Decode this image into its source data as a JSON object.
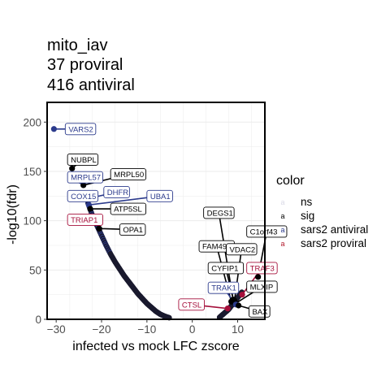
{
  "chart_data": {
    "type": "scatter",
    "title_lines": [
      "mito_iav",
      "37 proviral",
      "416 antiviral"
    ],
    "xlabel": "infected vs mock LFC zscore",
    "ylabel": "-log10(fdr)",
    "xlim": [
      -32,
      16
    ],
    "ylim": [
      0,
      220
    ],
    "x_ticks": [
      -30,
      -20,
      -10,
      0,
      10
    ],
    "y_ticks": [
      0,
      50,
      100,
      150,
      200
    ],
    "x_tick_labels": [
      "−30",
      "−20",
      "−10",
      "0",
      "10"
    ],
    "y_tick_labels": [
      "0",
      "50",
      "100",
      "150",
      "200"
    ],
    "grid": true,
    "legend": {
      "title": "color",
      "position": "right",
      "entries": [
        {
          "key": "ns",
          "label": "ns",
          "color": "#d9d9e6",
          "glyph": "a"
        },
        {
          "key": "sig",
          "label": "sig",
          "color": "#000000",
          "glyph": "a"
        },
        {
          "key": "sars2_antiviral",
          "label": "sars2 antiviral",
          "color": "#2b3a8c",
          "glyph": "a"
        },
        {
          "key": "sars2_proviral",
          "label": "sars2 proviral",
          "color": "#b2182b",
          "glyph": "a"
        }
      ]
    },
    "colors": {
      "sig": "#000000",
      "antiviral": "#2b3a8c",
      "proviral": "#a50f3a",
      "label_black": "#000000"
    },
    "curve_points": [
      {
        "x": -23,
        "y": 118
      },
      {
        "x": -22,
        "y": 105
      },
      {
        "x": -21,
        "y": 95
      },
      {
        "x": -20,
        "y": 85
      },
      {
        "x": -19,
        "y": 75
      },
      {
        "x": -18,
        "y": 66
      },
      {
        "x": -17,
        "y": 58
      },
      {
        "x": -16,
        "y": 51
      },
      {
        "x": -15,
        "y": 44
      },
      {
        "x": -14,
        "y": 38
      },
      {
        "x": -13,
        "y": 32
      },
      {
        "x": -12,
        "y": 26
      },
      {
        "x": -11,
        "y": 21
      },
      {
        "x": -10,
        "y": 16
      },
      {
        "x": -9,
        "y": 12
      },
      {
        "x": -8,
        "y": 8
      },
      {
        "x": -7,
        "y": 5
      },
      {
        "x": -6,
        "y": 3
      },
      {
        "x": -5,
        "y": 1.5
      },
      {
        "x": 6,
        "y": 2
      },
      {
        "x": 7,
        "y": 6
      },
      {
        "x": 8,
        "y": 10
      },
      {
        "x": 9,
        "y": 16
      },
      {
        "x": 10,
        "y": 22
      },
      {
        "x": 11,
        "y": 28
      }
    ],
    "points": [
      {
        "label": "VARS2",
        "x": -30.5,
        "y": 193,
        "group": "sars2_antiviral"
      },
      {
        "label": "NUBPL",
        "x": -26.5,
        "y": 153,
        "group": "sig"
      },
      {
        "label": "MRPL57",
        "x": -24.5,
        "y": 140,
        "group": "sars2_antiviral"
      },
      {
        "label": "MRPL50",
        "x": -24,
        "y": 136,
        "group": "sig"
      },
      {
        "label": "COX15",
        "x": -23.8,
        "y": 128,
        "group": "sars2_antiviral"
      },
      {
        "label": "DHFR",
        "x": -23.5,
        "y": 122,
        "group": "sars2_antiviral"
      },
      {
        "label": "UBA1",
        "x": -22.8,
        "y": 116,
        "group": "sars2_antiviral"
      },
      {
        "label": "ATP5SL",
        "x": -22.5,
        "y": 112,
        "group": "sig"
      },
      {
        "label": "TRIAP1",
        "x": -21.5,
        "y": 100,
        "group": "sars2_proviral"
      },
      {
        "label": "OPA1",
        "x": -20.5,
        "y": 92,
        "group": "sig"
      },
      {
        "label": "DEGS1",
        "x": 9.0,
        "y": 20,
        "group": "sig"
      },
      {
        "label": "C1orf43",
        "x": 14.5,
        "y": 43,
        "group": "sig"
      },
      {
        "label": "FAM49B",
        "x": 8.6,
        "y": 18,
        "group": "sig"
      },
      {
        "label": "VDAC2",
        "x": 9.3,
        "y": 19,
        "group": "sig"
      },
      {
        "label": "TRAF3",
        "x": 11.0,
        "y": 25,
        "group": "sars2_proviral"
      },
      {
        "label": "CYFIP1",
        "x": 9.2,
        "y": 17,
        "group": "sig"
      },
      {
        "label": "MLXIP",
        "x": 9.5,
        "y": 16,
        "group": "sig"
      },
      {
        "label": "TRAK1",
        "x": 9.6,
        "y": 15,
        "group": "sars2_antiviral"
      },
      {
        "label": "CTSL",
        "x": 7.8,
        "y": 11,
        "group": "sars2_proviral"
      },
      {
        "label": "BAX",
        "x": 10.2,
        "y": 14,
        "group": "sig"
      }
    ],
    "label_positions": [
      {
        "label": "VARS2",
        "lx": -28.0,
        "ly": 193,
        "color": "#2b3a8c"
      },
      {
        "label": "NUBPL",
        "lx": -27.5,
        "ly": 162,
        "color": "#000000"
      },
      {
        "label": "MRPL57",
        "lx": -27.5,
        "ly": 144,
        "color": "#2b3a8c"
      },
      {
        "label": "MRPL50",
        "lx": -18.0,
        "ly": 147,
        "color": "#000000"
      },
      {
        "label": "COX15",
        "lx": -27.5,
        "ly": 125,
        "color": "#2b3a8c"
      },
      {
        "label": "DHFR",
        "lx": -19.5,
        "ly": 129,
        "color": "#2b3a8c"
      },
      {
        "label": "UBA1",
        "lx": -10.0,
        "ly": 125,
        "color": "#2b3a8c"
      },
      {
        "label": "ATP5SL",
        "lx": -18.0,
        "ly": 112,
        "color": "#000000"
      },
      {
        "label": "TRIAP1",
        "lx": -27.5,
        "ly": 101,
        "color": "#a50f3a"
      },
      {
        "label": "OPA1",
        "lx": -16.0,
        "ly": 91,
        "color": "#000000"
      },
      {
        "label": "DEGS1",
        "lx": 2.5,
        "ly": 108,
        "color": "#000000"
      },
      {
        "label": "C1orf43",
        "lx": 12.0,
        "ly": 89,
        "color": "#000000"
      },
      {
        "label": "FAM49B",
        "lx": 1.5,
        "ly": 74,
        "color": "#000000"
      },
      {
        "label": "VDAC2",
        "lx": 7.5,
        "ly": 71,
        "color": "#000000"
      },
      {
        "label": "TRAF3",
        "lx": 12.0,
        "ly": 52,
        "color": "#a50f3a"
      },
      {
        "label": "CYFIP1",
        "lx": 3.5,
        "ly": 52,
        "color": "#000000"
      },
      {
        "label": "MLXIP",
        "lx": 12.0,
        "ly": 33,
        "color": "#000000"
      },
      {
        "label": "TRAK1",
        "lx": 3.5,
        "ly": 32,
        "color": "#2b3a8c"
      },
      {
        "label": "CTSL",
        "lx": -3.0,
        "ly": 15,
        "color": "#a50f3a"
      },
      {
        "label": "BAX",
        "lx": 12.5,
        "ly": 8,
        "color": "#000000"
      }
    ]
  }
}
